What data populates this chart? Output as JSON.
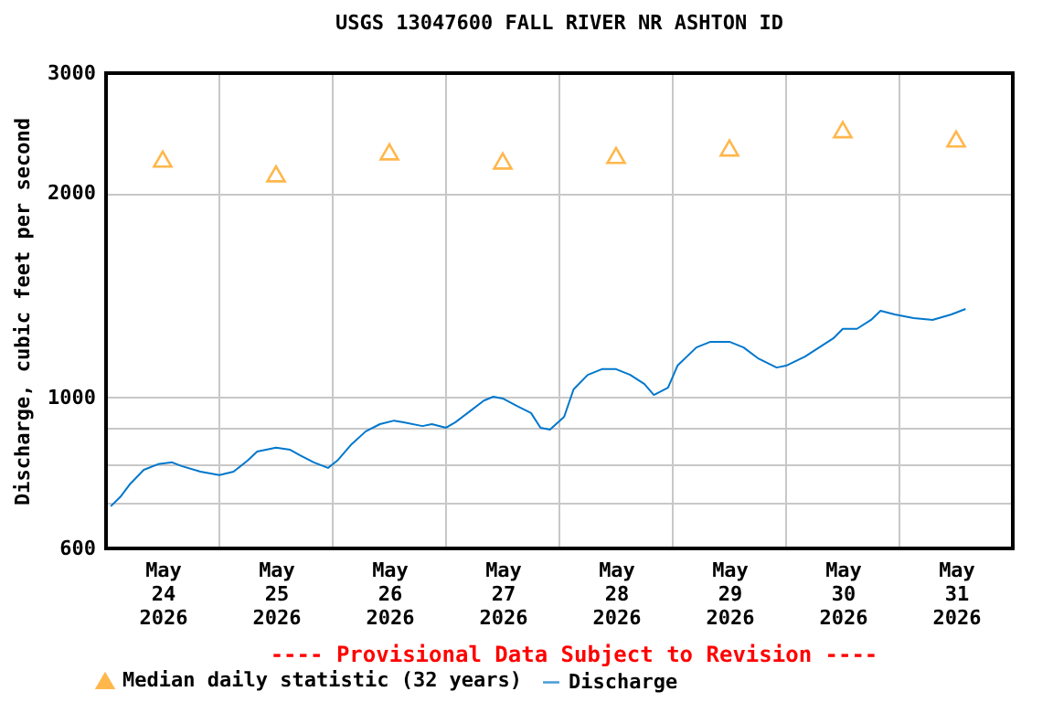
{
  "chart_data": {
    "type": "line",
    "title": "USGS 13047600 FALL RIVER NR ASHTON ID",
    "ylabel": "Discharge, cubic feet per second",
    "annotations": [
      "---- Provisional Data Subject to Revision ----"
    ],
    "log": "y",
    "grid": true,
    "legend": "bottom",
    "xlim": [
      "2026-05-24T00:00",
      "2026-06-01T00:00"
    ],
    "xticks": [
      {
        "value": "2026-05-24T12:00",
        "label": "May 24 2026"
      },
      {
        "value": "2026-05-25T00:00",
        "label": null
      },
      {
        "value": "2026-05-25T12:00",
        "label": "May 25 2026"
      },
      {
        "value": "2026-05-26T00:00",
        "label": null
      },
      {
        "value": "2026-05-26T12:00",
        "label": "May 26 2026"
      },
      {
        "value": "2026-05-27T00:00",
        "label": null
      },
      {
        "value": "2026-05-27T12:00",
        "label": "May 27 2026"
      },
      {
        "value": "2026-05-28T00:00",
        "label": null
      },
      {
        "value": "2026-05-28T12:00",
        "label": "May 28 2026"
      },
      {
        "value": "2026-05-29T00:00",
        "label": null
      },
      {
        "value": "2026-05-29T12:00",
        "label": "May 29 2026"
      },
      {
        "value": "2026-05-30T00:00",
        "label": null
      },
      {
        "value": "2026-05-30T12:00",
        "label": "May 30 2026"
      },
      {
        "value": "2026-05-31T00:00",
        "label": null
      },
      {
        "value": "2026-05-31T12:00",
        "label": "May 31 2026"
      }
    ],
    "ylim": [
      600,
      3000
    ],
    "yticks": [
      600,
      {
        "value": 700,
        "label": null
      },
      {
        "value": 800,
        "label": null
      },
      {
        "value": 900,
        "label": null
      },
      1000,
      2000,
      3000
    ],
    "series": [
      {
        "name": "Median daily statistic (32 years)",
        "type": "scatter",
        "marker": "triangle",
        "color": "#ff9900",
        "x": [
          "2026-05-24T12:00",
          "2026-05-25T12:00",
          "2026-05-26T12:00",
          "2026-05-27T12:00",
          "2026-05-28T12:00",
          "2026-05-29T12:00",
          "2026-05-30T12:00",
          "2026-05-31T12:00"
        ],
        "values": [
          2242,
          2133,
          2298,
          2228,
          2270,
          2328,
          2477,
          2400
        ]
      },
      {
        "name": "Discharge",
        "color": "#0077cc",
        "x": [
          "2026-05-24T01:00",
          "2026-05-24T03:00",
          "2026-05-24T05:00",
          "2026-05-24T08:00",
          "2026-05-24T11:00",
          "2026-05-24T14:00",
          "2026-05-24T16:00",
          "2026-05-24T20:00",
          "2026-05-25T00:00",
          "2026-05-25T03:00",
          "2026-05-25T06:00",
          "2026-05-25T08:00",
          "2026-05-25T12:00",
          "2026-05-25T15:00",
          "2026-05-25T17:00",
          "2026-05-25T20:00",
          "2026-05-25T23:00",
          "2026-05-26T01:00",
          "2026-05-26T04:00",
          "2026-05-26T07:00",
          "2026-05-26T10:00",
          "2026-05-26T13:00",
          "2026-05-26T15:00",
          "2026-05-26T19:00",
          "2026-05-26T21:00",
          "2026-05-27T00:00",
          "2026-05-27T02:00",
          "2026-05-27T05:00",
          "2026-05-27T08:00",
          "2026-05-27T10:00",
          "2026-05-27T12:00",
          "2026-05-27T15:00",
          "2026-05-27T18:00",
          "2026-05-27T20:00",
          "2026-05-27T22:00",
          "2026-05-28T01:00",
          "2026-05-28T03:00",
          "2026-05-28T06:00",
          "2026-05-28T09:00",
          "2026-05-28T12:00",
          "2026-05-28T15:00",
          "2026-05-28T18:00",
          "2026-05-28T20:00",
          "2026-05-28T23:00",
          "2026-05-29T01:00",
          "2026-05-29T05:00",
          "2026-05-29T08:00",
          "2026-05-29T12:00",
          "2026-05-29T15:00",
          "2026-05-29T18:00",
          "2026-05-29T22:00",
          "2026-05-30T00:00",
          "2026-05-30T04:00",
          "2026-05-30T07:00",
          "2026-05-30T10:00",
          "2026-05-30T12:00",
          "2026-05-30T15:00",
          "2026-05-30T18:00",
          "2026-05-30T20:00",
          "2026-05-30T23:00",
          "2026-05-31T03:00",
          "2026-05-31T07:00",
          "2026-05-31T11:00",
          "2026-05-31T14:00"
        ],
        "values": [
          692,
          714,
          745,
          783,
          798,
          803,
          793,
          778,
          769,
          778,
          808,
          833,
          844,
          838,
          823,
          803,
          788,
          808,
          854,
          892,
          914,
          925,
          920,
          908,
          914,
          903,
          920,
          954,
          990,
          1003,
          997,
          972,
          949,
          903,
          897,
          937,
          1028,
          1080,
          1101,
          1101,
          1080,
          1047,
          1009,
          1034,
          1114,
          1185,
          1208,
          1208,
          1185,
          1143,
          1107,
          1114,
          1149,
          1185,
          1222,
          1262,
          1262,
          1301,
          1342,
          1325,
          1309,
          1301,
          1325,
          1350
        ]
      }
    ]
  }
}
